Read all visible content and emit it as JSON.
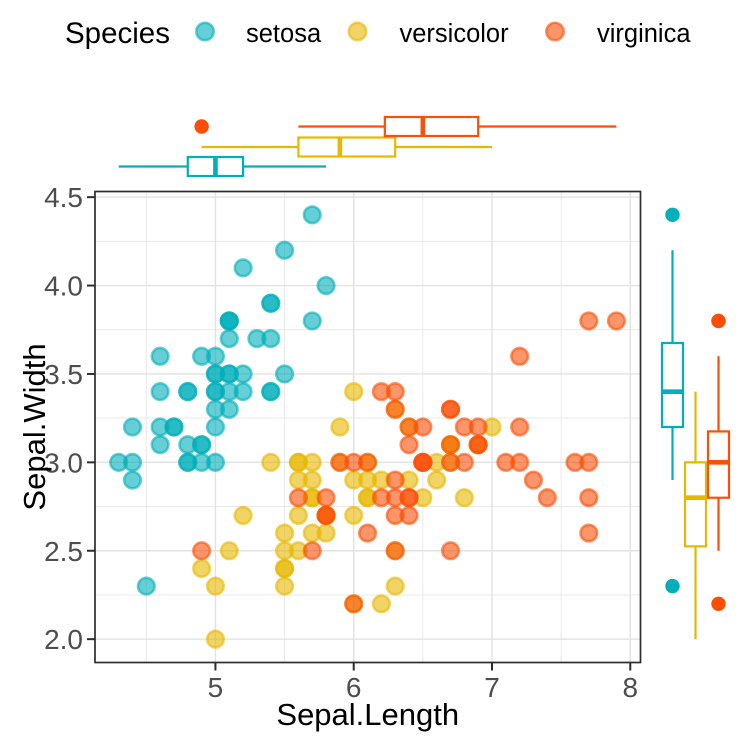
{
  "legend": {
    "title": "Species",
    "items": [
      {
        "label": "setosa",
        "color": "#00AFBB"
      },
      {
        "label": "versicolor",
        "color": "#E7B800"
      },
      {
        "label": "virginica",
        "color": "#FC4E07"
      }
    ]
  },
  "axes": {
    "x": {
      "title": "Sepal.Length",
      "tick_labels": [
        "5",
        "6",
        "7",
        "8"
      ],
      "ticks": [
        5,
        6,
        7,
        8
      ],
      "minor_ticks": [
        4.5,
        5.5,
        6.5,
        7.5
      ],
      "domain": [
        4.129,
        8.074
      ]
    },
    "y": {
      "title": "Sepal.Width",
      "tick_labels": [
        "2.0",
        "2.5",
        "3.0",
        "3.5",
        "4.0",
        "4.5"
      ],
      "ticks": [
        2.0,
        2.5,
        3.0,
        3.5,
        4.0,
        4.5
      ],
      "minor_ticks": [
        2.25,
        2.75,
        3.25,
        3.75,
        4.25
      ],
      "domain": [
        1.868,
        4.532
      ]
    }
  },
  "chart_data": {
    "type": "scatter",
    "title": "",
    "xlabel": "Sepal.Length",
    "ylabel": "Sepal.Width",
    "legend_position": "top",
    "grid": true,
    "point_alpha": 0.6,
    "series": [
      {
        "name": "setosa",
        "color": "#00AFBB",
        "points": [
          [
            5.1,
            3.5
          ],
          [
            4.9,
            3.0
          ],
          [
            4.7,
            3.2
          ],
          [
            4.6,
            3.1
          ],
          [
            5.0,
            3.6
          ],
          [
            5.4,
            3.9
          ],
          [
            4.6,
            3.4
          ],
          [
            5.0,
            3.4
          ],
          [
            4.4,
            2.9
          ],
          [
            4.9,
            3.1
          ],
          [
            5.4,
            3.7
          ],
          [
            4.8,
            3.4
          ],
          [
            4.8,
            3.0
          ],
          [
            4.3,
            3.0
          ],
          [
            5.8,
            4.0
          ],
          [
            5.7,
            4.4
          ],
          [
            5.4,
            3.9
          ],
          [
            5.1,
            3.5
          ],
          [
            5.7,
            3.8
          ],
          [
            5.1,
            3.8
          ],
          [
            5.4,
            3.4
          ],
          [
            5.1,
            3.7
          ],
          [
            4.6,
            3.6
          ],
          [
            5.1,
            3.3
          ],
          [
            4.8,
            3.4
          ],
          [
            5.0,
            3.0
          ],
          [
            5.0,
            3.4
          ],
          [
            5.2,
            3.5
          ],
          [
            5.2,
            3.4
          ],
          [
            4.7,
            3.2
          ],
          [
            4.8,
            3.1
          ],
          [
            5.4,
            3.4
          ],
          [
            5.2,
            4.1
          ],
          [
            5.5,
            4.2
          ],
          [
            4.9,
            3.1
          ],
          [
            5.0,
            3.2
          ],
          [
            5.5,
            3.5
          ],
          [
            4.9,
            3.6
          ],
          [
            4.4,
            3.0
          ],
          [
            5.1,
            3.4
          ],
          [
            5.0,
            3.5
          ],
          [
            4.5,
            2.3
          ],
          [
            4.4,
            3.2
          ],
          [
            5.0,
            3.5
          ],
          [
            5.1,
            3.8
          ],
          [
            4.8,
            3.0
          ],
          [
            5.1,
            3.8
          ],
          [
            4.6,
            3.2
          ],
          [
            5.3,
            3.7
          ],
          [
            5.0,
            3.3
          ]
        ]
      },
      {
        "name": "versicolor",
        "color": "#E7B800",
        "points": [
          [
            7.0,
            3.2
          ],
          [
            6.4,
            3.2
          ],
          [
            6.9,
            3.1
          ],
          [
            5.5,
            2.3
          ],
          [
            6.5,
            2.8
          ],
          [
            5.7,
            2.8
          ],
          [
            6.3,
            3.3
          ],
          [
            4.9,
            2.4
          ],
          [
            6.6,
            2.9
          ],
          [
            5.2,
            2.7
          ],
          [
            5.0,
            2.0
          ],
          [
            5.9,
            3.0
          ],
          [
            6.0,
            2.2
          ],
          [
            6.1,
            2.9
          ],
          [
            5.6,
            2.9
          ],
          [
            6.7,
            3.1
          ],
          [
            5.6,
            3.0
          ],
          [
            5.8,
            2.7
          ],
          [
            6.2,
            2.2
          ],
          [
            5.6,
            2.5
          ],
          [
            5.9,
            3.2
          ],
          [
            6.1,
            2.8
          ],
          [
            6.3,
            2.5
          ],
          [
            6.1,
            2.8
          ],
          [
            6.4,
            2.9
          ],
          [
            6.6,
            3.0
          ],
          [
            6.8,
            2.8
          ],
          [
            6.7,
            3.0
          ],
          [
            6.0,
            2.9
          ],
          [
            5.7,
            2.6
          ],
          [
            5.5,
            2.4
          ],
          [
            5.5,
            2.4
          ],
          [
            5.8,
            2.7
          ],
          [
            6.0,
            2.7
          ],
          [
            5.4,
            3.0
          ],
          [
            6.0,
            3.4
          ],
          [
            6.7,
            3.1
          ],
          [
            6.3,
            2.3
          ],
          [
            5.6,
            3.0
          ],
          [
            5.5,
            2.5
          ],
          [
            5.5,
            2.6
          ],
          [
            6.1,
            3.0
          ],
          [
            5.8,
            2.6
          ],
          [
            5.0,
            2.3
          ],
          [
            5.6,
            2.7
          ],
          [
            5.7,
            3.0
          ],
          [
            5.7,
            2.9
          ],
          [
            6.2,
            2.9
          ],
          [
            5.1,
            2.5
          ],
          [
            5.7,
            2.8
          ]
        ]
      },
      {
        "name": "virginica",
        "color": "#FC4E07",
        "points": [
          [
            6.3,
            3.3
          ],
          [
            5.8,
            2.7
          ],
          [
            7.1,
            3.0
          ],
          [
            6.3,
            2.9
          ],
          [
            6.5,
            3.0
          ],
          [
            7.6,
            3.0
          ],
          [
            4.9,
            2.5
          ],
          [
            7.3,
            2.9
          ],
          [
            6.7,
            2.5
          ],
          [
            7.2,
            3.6
          ],
          [
            6.5,
            3.2
          ],
          [
            6.4,
            2.7
          ],
          [
            6.8,
            3.0
          ],
          [
            5.7,
            2.5
          ],
          [
            5.8,
            2.8
          ],
          [
            6.4,
            3.2
          ],
          [
            6.5,
            3.0
          ],
          [
            7.7,
            3.8
          ],
          [
            7.7,
            2.6
          ],
          [
            6.0,
            2.2
          ],
          [
            6.9,
            3.2
          ],
          [
            5.6,
            2.8
          ],
          [
            7.7,
            2.8
          ],
          [
            6.3,
            2.7
          ],
          [
            6.7,
            3.3
          ],
          [
            7.2,
            3.2
          ],
          [
            6.2,
            2.8
          ],
          [
            6.1,
            3.0
          ],
          [
            6.4,
            2.8
          ],
          [
            7.2,
            3.0
          ],
          [
            7.4,
            2.8
          ],
          [
            7.9,
            3.8
          ],
          [
            6.4,
            2.8
          ],
          [
            6.3,
            2.8
          ],
          [
            6.1,
            2.6
          ],
          [
            7.7,
            3.0
          ],
          [
            6.3,
            3.4
          ],
          [
            6.4,
            3.1
          ],
          [
            6.0,
            3.0
          ],
          [
            6.9,
            3.1
          ],
          [
            6.7,
            3.1
          ],
          [
            6.9,
            3.1
          ],
          [
            5.8,
            2.7
          ],
          [
            6.8,
            3.2
          ],
          [
            6.7,
            3.3
          ],
          [
            6.7,
            3.0
          ],
          [
            6.3,
            2.5
          ],
          [
            6.5,
            3.0
          ],
          [
            6.2,
            3.4
          ],
          [
            5.9,
            3.0
          ]
        ]
      }
    ],
    "x_marginal_boxplots": [
      {
        "name": "setosa",
        "color": "#00AFBB",
        "whisker_min": 4.3,
        "q1": 4.8,
        "median": 5.0,
        "q3": 5.2,
        "whisker_max": 5.8,
        "outliers": []
      },
      {
        "name": "versicolor",
        "color": "#E7B800",
        "whisker_min": 4.9,
        "q1": 5.6,
        "median": 5.9,
        "q3": 6.3,
        "whisker_max": 7.0,
        "outliers": []
      },
      {
        "name": "virginica",
        "color": "#FC4E07",
        "whisker_min": 5.6,
        "q1": 6.225,
        "median": 6.5,
        "q3": 6.9,
        "whisker_max": 7.9,
        "outliers": [
          4.9
        ]
      }
    ],
    "y_marginal_boxplots": [
      {
        "name": "setosa",
        "color": "#00AFBB",
        "whisker_min": 2.9,
        "q1": 3.2,
        "median": 3.4,
        "q3": 3.675,
        "whisker_max": 4.2,
        "outliers": [
          2.3,
          4.4
        ]
      },
      {
        "name": "versicolor",
        "color": "#E7B800",
        "whisker_min": 2.0,
        "q1": 2.525,
        "median": 2.8,
        "q3": 3.0,
        "whisker_max": 3.4,
        "outliers": []
      },
      {
        "name": "virginica",
        "color": "#FC4E07",
        "whisker_min": 2.5,
        "q1": 2.8,
        "median": 3.0,
        "q3": 3.175,
        "whisker_max": 3.6,
        "outliers": [
          2.2,
          3.8,
          3.8
        ]
      }
    ]
  }
}
